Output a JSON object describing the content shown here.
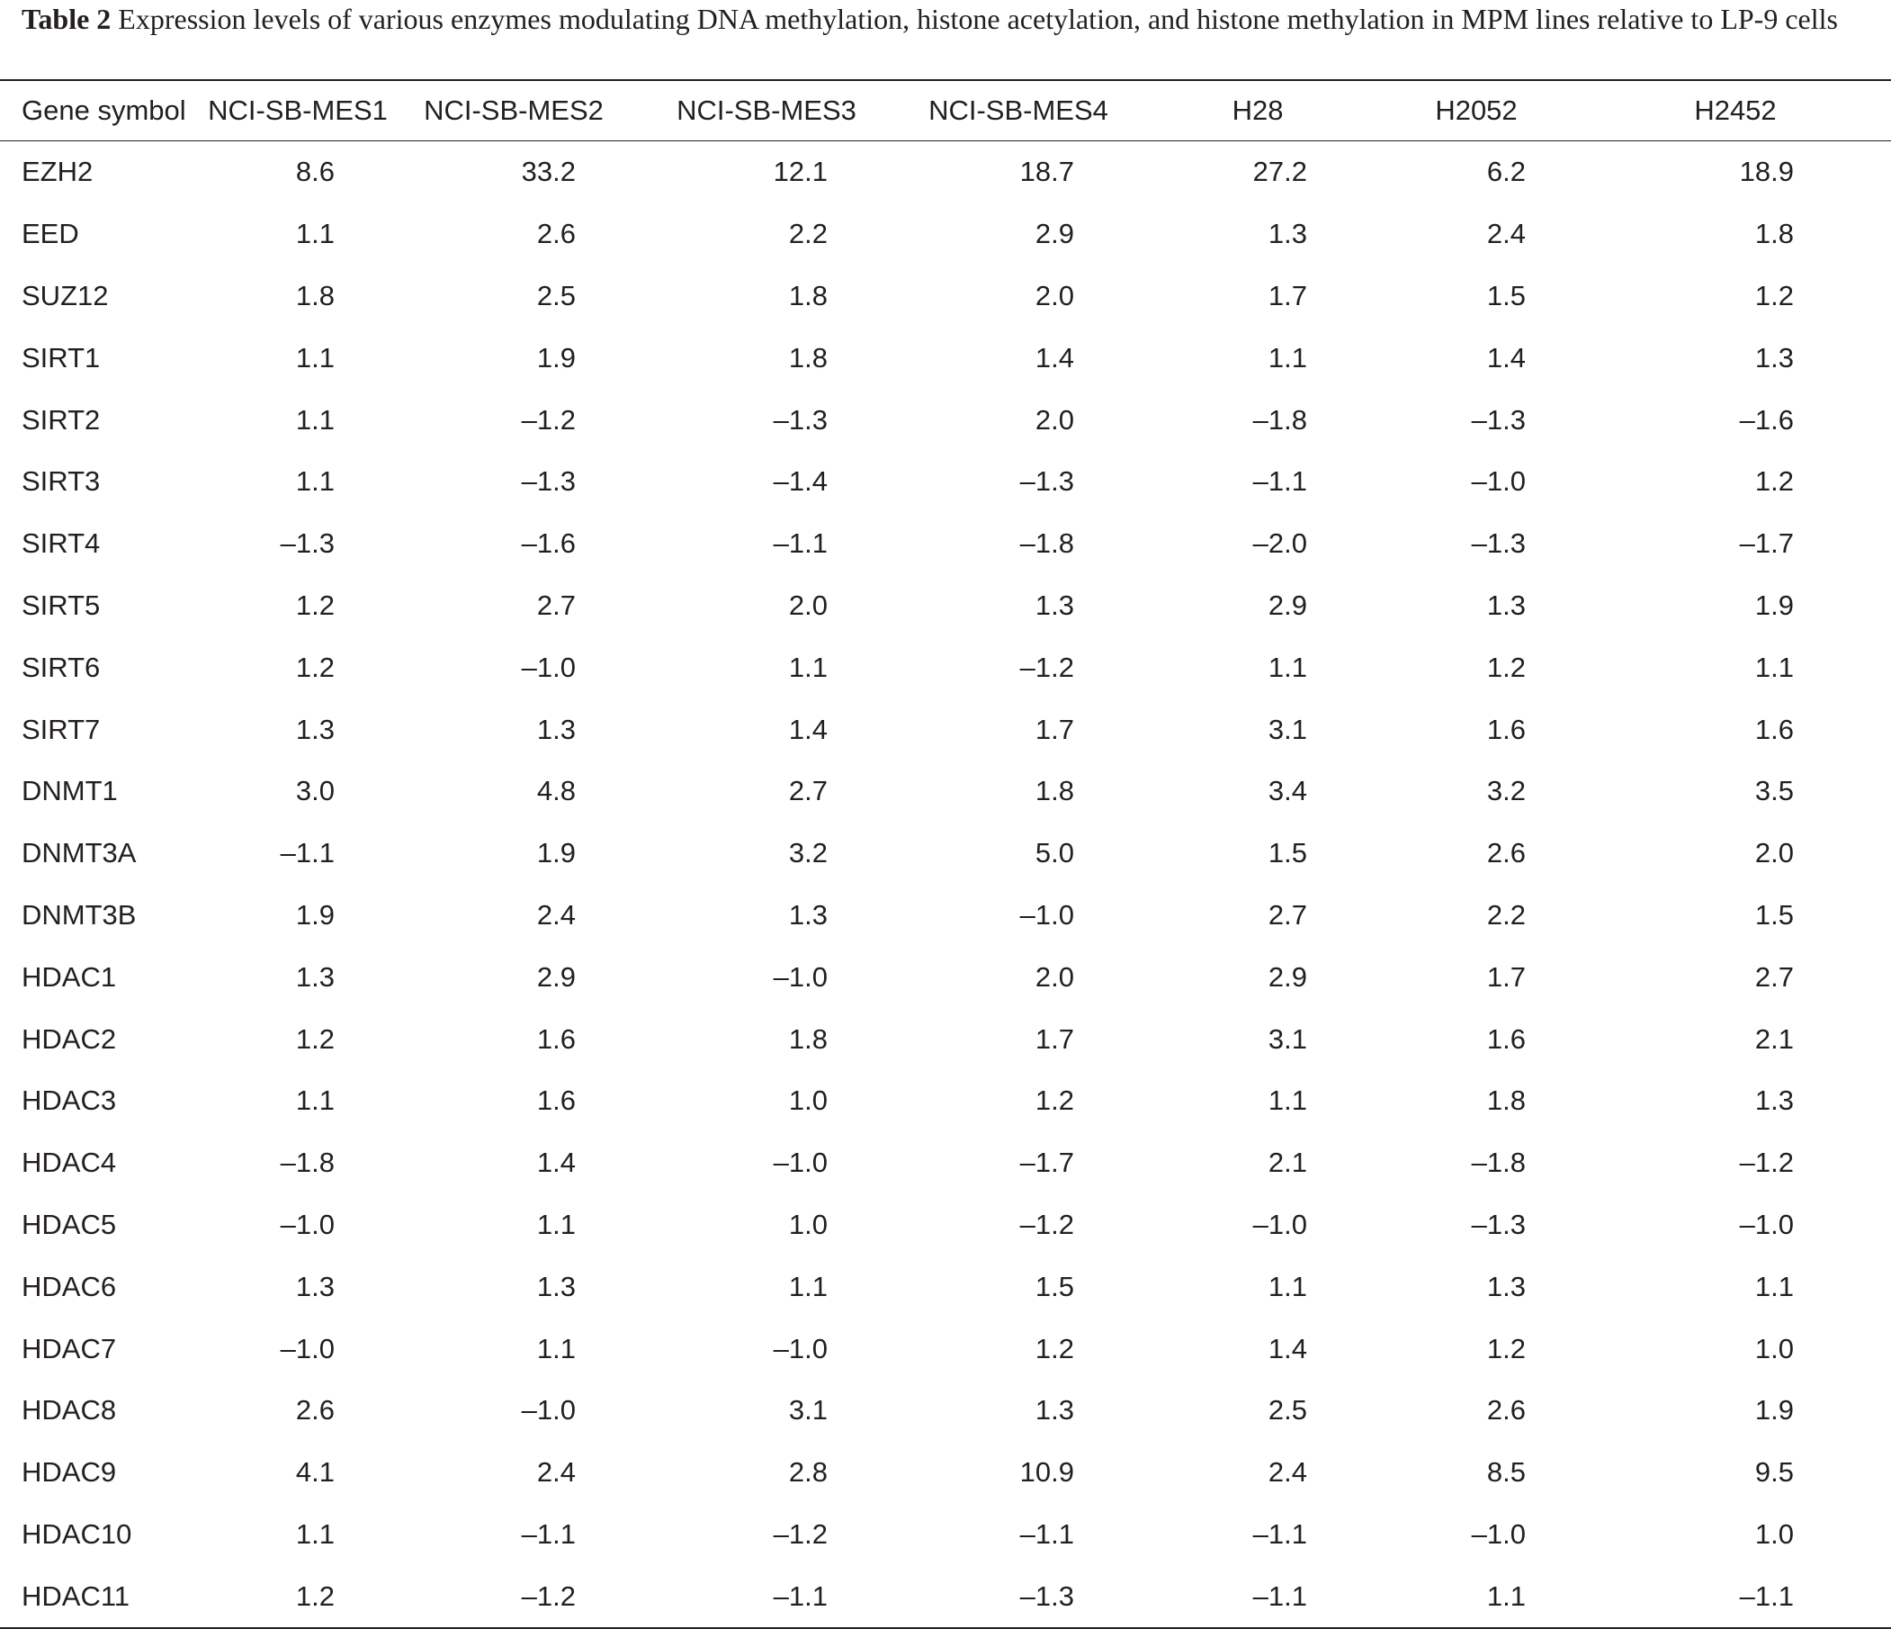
{
  "caption": {
    "label": "Table 2",
    "text": " Expression levels of various enzymes modulating DNA methylation, histone acetylation, and histone methylation in MPM lines relative to LP-9 cells"
  },
  "chart_data": {
    "type": "table",
    "columns": [
      "Gene symbol",
      "NCI-SB-MES1",
      "NCI-SB-MES2",
      "NCI-SB-MES3",
      "NCI-SB-MES4",
      "H28",
      "H2052",
      "H2452"
    ],
    "rows": [
      [
        "EZH2",
        "8.6",
        "33.2",
        "12.1",
        "18.7",
        "27.2",
        "6.2",
        "18.9"
      ],
      [
        "EED",
        "1.1",
        "2.6",
        "2.2",
        "2.9",
        "1.3",
        "2.4",
        "1.8"
      ],
      [
        "SUZ12",
        "1.8",
        "2.5",
        "1.8",
        "2.0",
        "1.7",
        "1.5",
        "1.2"
      ],
      [
        "SIRT1",
        "1.1",
        "1.9",
        "1.8",
        "1.4",
        "1.1",
        "1.4",
        "1.3"
      ],
      [
        "SIRT2",
        "1.1",
        "–1.2",
        "–1.3",
        "2.0",
        "–1.8",
        "–1.3",
        "–1.6"
      ],
      [
        "SIRT3",
        "1.1",
        "–1.3",
        "–1.4",
        "–1.3",
        "–1.1",
        "–1.0",
        "1.2"
      ],
      [
        "SIRT4",
        "–1.3",
        "–1.6",
        "–1.1",
        "–1.8",
        "–2.0",
        "–1.3",
        "–1.7"
      ],
      [
        "SIRT5",
        "1.2",
        "2.7",
        "2.0",
        "1.3",
        "2.9",
        "1.3",
        "1.9"
      ],
      [
        "SIRT6",
        "1.2",
        "–1.0",
        "1.1",
        "–1.2",
        "1.1",
        "1.2",
        "1.1"
      ],
      [
        "SIRT7",
        "1.3",
        "1.3",
        "1.4",
        "1.7",
        "3.1",
        "1.6",
        "1.6"
      ],
      [
        "DNMT1",
        "3.0",
        "4.8",
        "2.7",
        "1.8",
        "3.4",
        "3.2",
        "3.5"
      ],
      [
        "DNMT3A",
        "–1.1",
        "1.9",
        "3.2",
        "5.0",
        "1.5",
        "2.6",
        "2.0"
      ],
      [
        "DNMT3B",
        "1.9",
        "2.4",
        "1.3",
        "–1.0",
        "2.7",
        "2.2",
        "1.5"
      ],
      [
        "HDAC1",
        "1.3",
        "2.9",
        "–1.0",
        "2.0",
        "2.9",
        "1.7",
        "2.7"
      ],
      [
        "HDAC2",
        "1.2",
        "1.6",
        "1.8",
        "1.7",
        "3.1",
        "1.6",
        "2.1"
      ],
      [
        "HDAC3",
        "1.1",
        "1.6",
        "1.0",
        "1.2",
        "1.1",
        "1.8",
        "1.3"
      ],
      [
        "HDAC4",
        "–1.8",
        "1.4",
        "–1.0",
        "–1.7",
        "2.1",
        "–1.8",
        "–1.2"
      ],
      [
        "HDAC5",
        "–1.0",
        "1.1",
        "1.0",
        "–1.2",
        "–1.0",
        "–1.3",
        "–1.0"
      ],
      [
        "HDAC6",
        "1.3",
        "1.3",
        "1.1",
        "1.5",
        "1.1",
        "1.3",
        "1.1"
      ],
      [
        "HDAC7",
        "–1.0",
        "1.1",
        "–1.0",
        "1.2",
        "1.4",
        "1.2",
        "1.0"
      ],
      [
        "HDAC8",
        "2.6",
        "–1.0",
        "3.1",
        "1.3",
        "2.5",
        "2.6",
        "1.9"
      ],
      [
        "HDAC9",
        "4.1",
        "2.4",
        "2.8",
        "10.9",
        "2.4",
        "8.5",
        "9.5"
      ],
      [
        "HDAC10",
        "1.1",
        "–1.1",
        "–1.2",
        "–1.1",
        "–1.1",
        "–1.0",
        "1.0"
      ],
      [
        "HDAC11",
        "1.2",
        "–1.2",
        "–1.1",
        "–1.3",
        "–1.1",
        "1.1",
        "–1.1"
      ]
    ]
  }
}
